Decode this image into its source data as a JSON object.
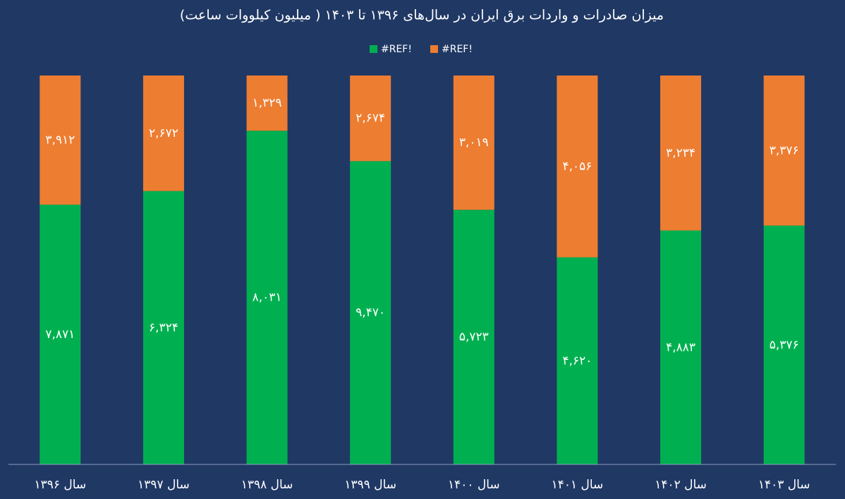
{
  "chart_data": {
    "type": "bar",
    "stacking": "percent",
    "title": "میزان صادرات و واردات برق ایران در سال‌های ۱۳۹۶ تا ۱۴۰۳ ( میلیون کیلووات ساعت)",
    "categories": [
      "سال ۱۳۹۶",
      "سال ۱۳۹۷",
      "سال ۱۳۹۸",
      "سال ۱۳۹۹",
      "سال ۱۴۰۰",
      "سال ۱۴۰۱",
      "سال ۱۴۰۲",
      "سال ۱۴۰۳"
    ],
    "series": [
      {
        "name": "#REF!",
        "color": "#00b050",
        "values": [
          7871,
          6324,
          8031,
          9470,
          5723,
          4620,
          4883,
          5376
        ],
        "value_labels": [
          "۷,۸۷۱",
          "۶,۳۲۴",
          "۸,۰۳۱",
          "۹,۴۷۰",
          "۵,۷۲۳",
          "۴,۶۲۰",
          "۴,۸۸۳",
          "۵,۳۷۶"
        ]
      },
      {
        "name": "#REF!",
        "color": "#ed7d31",
        "values": [
          3912,
          2672,
          1329,
          2674,
          3019,
          4056,
          3234,
          3376
        ],
        "value_labels": [
          "۳,۹۱۲",
          "۲,۶۷۲",
          "۱,۳۲۹",
          "۲,۶۷۴",
          "۳,۰۱۹",
          "۴,۰۵۶",
          "۳,۲۳۴",
          "۳,۳۷۶"
        ]
      }
    ],
    "legend": "top"
  }
}
